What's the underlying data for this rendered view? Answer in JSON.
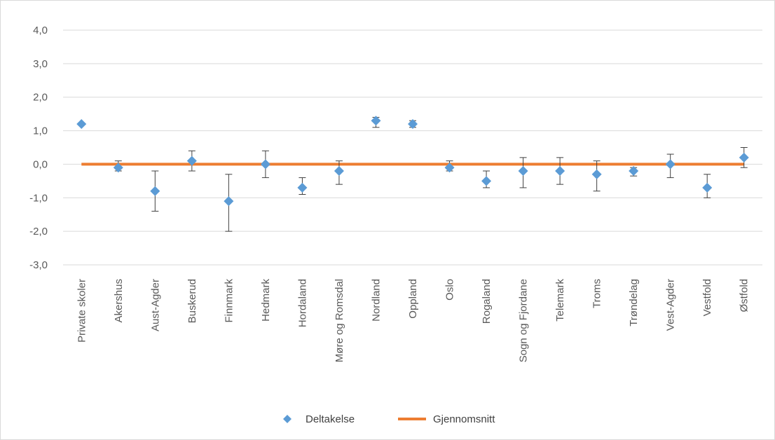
{
  "chart_data": {
    "type": "scatter",
    "title": "",
    "xlabel": "",
    "ylabel": "",
    "categories": [
      "Private skoler",
      "Akershus",
      "Aust-Agder",
      "Buskerud",
      "Finnmark",
      "Hedmark",
      "Hordaland",
      "Møre og Romsdal",
      "Nordland",
      "Oppland",
      "Oslo",
      "Rogaland",
      "Sogn og Fjordane",
      "Telemark",
      "Troms",
      "Trøndelag",
      "Vest-Agder",
      "Vestfold",
      "Østfold"
    ],
    "ylim": [
      -3,
      4
    ],
    "y_ticks": [
      "4,0",
      "3,0",
      "2,0",
      "1,0",
      "0,0",
      "-1,0",
      "-2,0",
      "-3,0"
    ],
    "y_tick_values": [
      4,
      3,
      2,
      1,
      0,
      -1,
      -2,
      -3
    ],
    "grid": true,
    "legend_position": "bottom",
    "series": [
      {
        "name": "Deltakelse",
        "marker": "diamond",
        "color": "#5b9bd5",
        "values": [
          1.2,
          -0.1,
          -0.8,
          0.1,
          -1.1,
          0.0,
          -0.7,
          -0.2,
          1.3,
          1.2,
          -0.1,
          -0.5,
          -0.2,
          -0.2,
          -0.3,
          -0.2,
          0.0,
          -0.7,
          0.2
        ],
        "error_low": [
          1.2,
          -0.2,
          -1.4,
          -0.2,
          -2.0,
          -0.4,
          -0.9,
          -0.6,
          1.1,
          1.1,
          -0.2,
          -0.7,
          -0.7,
          -0.6,
          -0.8,
          -0.35,
          -0.4,
          -1.0,
          -0.1
        ],
        "error_high": [
          1.2,
          0.1,
          -0.2,
          0.4,
          -0.3,
          0.4,
          -0.4,
          0.1,
          1.4,
          1.3,
          0.1,
          -0.2,
          0.2,
          0.2,
          0.1,
          -0.1,
          0.3,
          -0.3,
          0.5
        ]
      },
      {
        "name": "Gjennomsnitt",
        "type": "line",
        "color": "#ed7d31",
        "value": 0.0
      }
    ]
  }
}
